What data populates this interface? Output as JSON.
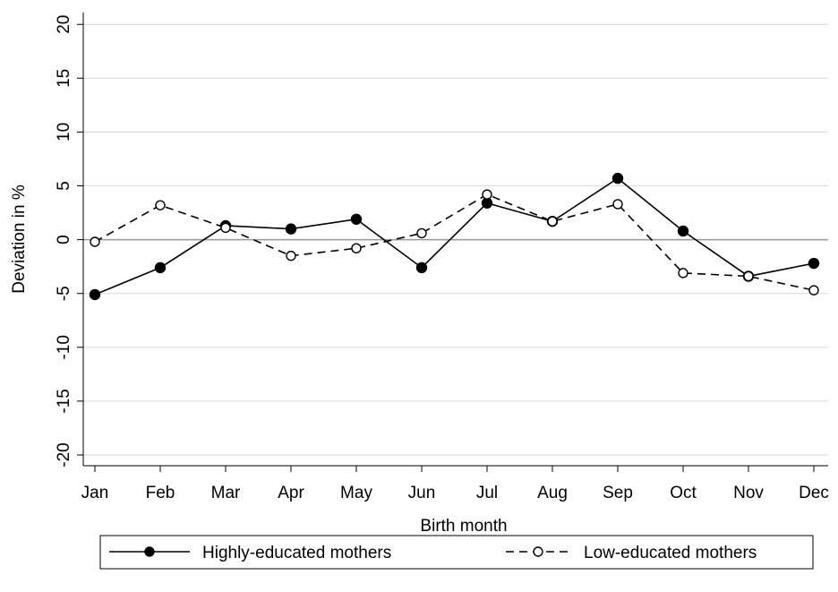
{
  "chart_data": {
    "type": "line",
    "x_label": "Birth month",
    "y_label": "Deviation in %",
    "categories": [
      "Jan",
      "Feb",
      "Mar",
      "Apr",
      "May",
      "Jun",
      "Jul",
      "Aug",
      "Sep",
      "Oct",
      "Nov",
      "Dec"
    ],
    "series": [
      {
        "name": "Highly-educated mothers",
        "color": "#000000",
        "line_style": "solid",
        "marker_fill": "filled",
        "values": [
          -5.1,
          -2.6,
          1.3,
          1.0,
          1.9,
          -2.6,
          3.4,
          1.7,
          5.7,
          0.8,
          -3.4,
          -2.2
        ]
      },
      {
        "name": "Low-educated mothers",
        "color": "#000000",
        "line_style": "dashed",
        "marker_fill": "hollow",
        "values": [
          -0.2,
          3.2,
          1.1,
          -1.5,
          -0.8,
          0.6,
          4.2,
          1.7,
          3.3,
          -3.1,
          -3.4,
          -4.7
        ]
      }
    ],
    "ylim": [
      -21,
      21.1
    ],
    "yticks": [
      -20,
      -15,
      -10,
      -5,
      0,
      5,
      10,
      15,
      20
    ],
    "grid": true,
    "legend": "bottom"
  }
}
